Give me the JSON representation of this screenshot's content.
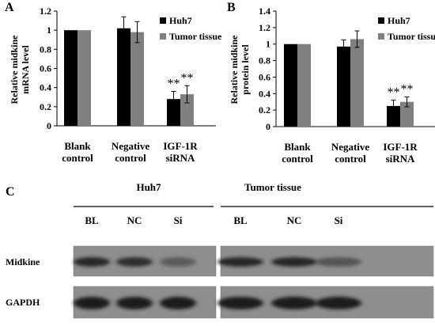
{
  "chart_data": [
    {
      "panel_label": "A",
      "type": "bar",
      "ylabel_lines": [
        "Relative midkine",
        "mRNA level"
      ],
      "ylim": [
        0,
        1.2
      ],
      "yticks": [
        "0",
        "0.2",
        "0.4",
        "0.6",
        "0.8",
        "1",
        "1.2"
      ],
      "categories": [
        [
          "Blank",
          "control"
        ],
        [
          "Negative",
          "control"
        ],
        [
          "IGF-1R",
          "siRNA"
        ]
      ],
      "series": [
        {
          "name": "Huh7",
          "color": "#000000",
          "values": [
            1.0,
            1.02,
            0.28
          ],
          "errors": [
            0.0,
            0.12,
            0.08
          ]
        },
        {
          "name": "Tumor tissue",
          "color": "#808080",
          "values": [
            1.0,
            0.98,
            0.33
          ],
          "errors": [
            0.0,
            0.11,
            0.09
          ]
        }
      ],
      "annotations": [
        "",
        "",
        "**"
      ]
    },
    {
      "panel_label": "B",
      "type": "bar",
      "ylabel_lines": [
        "Relative midkine",
        "protein level"
      ],
      "ylim": [
        0,
        1.4
      ],
      "yticks": [
        "0",
        "0.2",
        "0.4",
        "0.6",
        "0.8",
        "1",
        "1.2",
        "1.4"
      ],
      "categories": [
        [
          "Blank",
          "control"
        ],
        [
          "Negative",
          "control"
        ],
        [
          "IGF-1R",
          "siRNA"
        ]
      ],
      "series": [
        {
          "name": "Huh7",
          "color": "#000000",
          "values": [
            1.0,
            0.97,
            0.25
          ],
          "errors": [
            0.0,
            0.08,
            0.07
          ]
        },
        {
          "name": "Tumor tissue",
          "color": "#808080",
          "values": [
            1.0,
            1.06,
            0.3
          ],
          "errors": [
            0.0,
            0.1,
            0.06
          ]
        }
      ],
      "annotations": [
        "",
        "",
        "**"
      ]
    }
  ],
  "blot_panel": {
    "panel_label": "C",
    "groups": [
      {
        "title": "Huh7",
        "lanes": [
          "BL",
          "NC",
          "Si"
        ]
      },
      {
        "title": "Tumor tissue",
        "lanes": [
          "BL",
          "NC",
          "Si"
        ]
      }
    ],
    "rows": [
      {
        "label": "Midkine",
        "intensity": [
          0.85,
          0.8,
          0.45,
          0.85,
          0.85,
          0.5
        ]
      },
      {
        "label": "GAPDH",
        "intensity": [
          0.95,
          0.95,
          0.95,
          0.95,
          0.95,
          0.95
        ]
      }
    ]
  }
}
